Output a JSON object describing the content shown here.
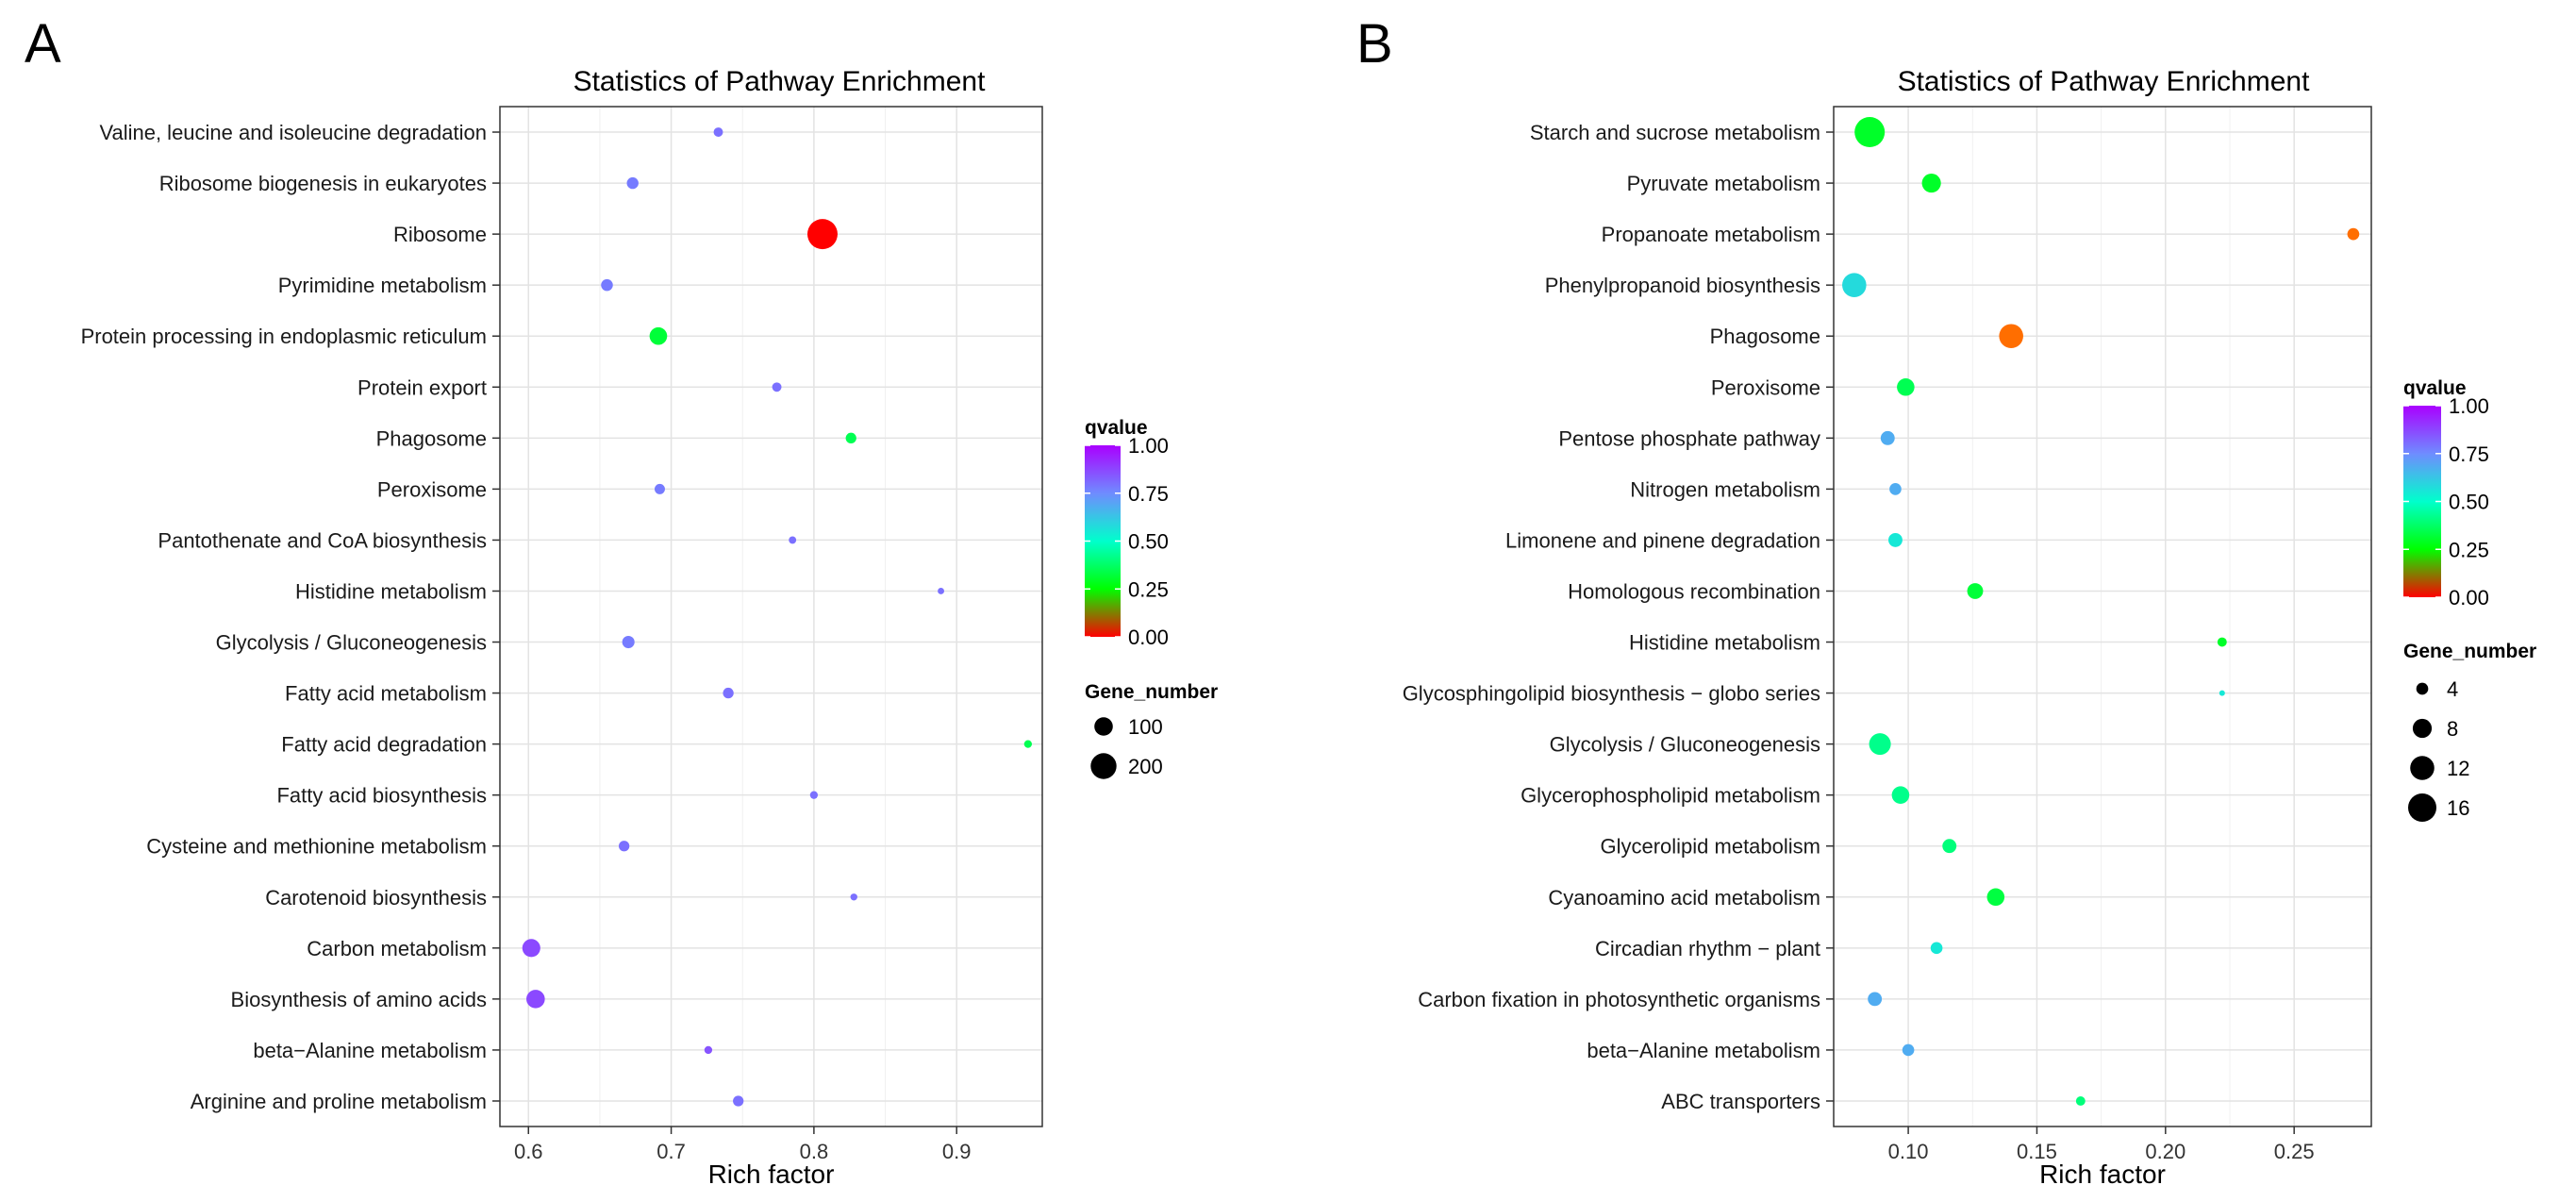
{
  "chart_data": [
    {
      "type": "scatter",
      "panel": "A",
      "title": "Statistics of Pathway Enrichment",
      "xlabel": "Rich factor",
      "ylabel": "",
      "xlim": [
        0.58,
        0.96
      ],
      "xticks": [
        0.6,
        0.7,
        0.8,
        0.9
      ],
      "xtick_labels": [
        "0.6",
        "0.7",
        "0.8",
        "0.9"
      ],
      "grid": true,
      "color_legend": {
        "title": "qvalue",
        "range": [
          0.0,
          1.0
        ],
        "ticks": [
          "1.00",
          "0.75",
          "0.50",
          "0.25",
          "0.00"
        ]
      },
      "size_legend": {
        "title": "Gene_number",
        "values": [
          100,
          200
        ],
        "labels": [
          "100",
          "200"
        ]
      },
      "size_range": [
        5,
        275
      ],
      "points": [
        {
          "pathway": "Valine, leucine and isoleucine degradation",
          "rich_factor": 0.733,
          "qvalue": 0.8,
          "gene_number": 22
        },
        {
          "pathway": "Ribosome biogenesis in eukaryotes",
          "rich_factor": 0.673,
          "qvalue": 0.78,
          "gene_number": 37
        },
        {
          "pathway": "Ribosome",
          "rich_factor": 0.806,
          "qvalue": 0.0,
          "gene_number": 275
        },
        {
          "pathway": "Pyrimidine metabolism",
          "rich_factor": 0.655,
          "qvalue": 0.78,
          "gene_number": 38
        },
        {
          "pathway": "Protein processing in endoplasmic reticulum",
          "rich_factor": 0.691,
          "qvalue": 0.32,
          "gene_number": 90
        },
        {
          "pathway": "Protein export",
          "rich_factor": 0.774,
          "qvalue": 0.8,
          "gene_number": 22
        },
        {
          "pathway": "Phagosome",
          "rich_factor": 0.826,
          "qvalue": 0.35,
          "gene_number": 30
        },
        {
          "pathway": "Peroxisome",
          "rich_factor": 0.692,
          "qvalue": 0.78,
          "gene_number": 28
        },
        {
          "pathway": "Pantothenate and CoA biosynthesis",
          "rich_factor": 0.785,
          "qvalue": 0.8,
          "gene_number": 12
        },
        {
          "pathway": "Histidine metabolism",
          "rich_factor": 0.889,
          "qvalue": 0.8,
          "gene_number": 8
        },
        {
          "pathway": "Glycolysis / Gluconeogenesis",
          "rich_factor": 0.67,
          "qvalue": 0.78,
          "gene_number": 42
        },
        {
          "pathway": "Fatty acid metabolism",
          "rich_factor": 0.74,
          "qvalue": 0.8,
          "gene_number": 30
        },
        {
          "pathway": "Fatty acid degradation",
          "rich_factor": 0.95,
          "qvalue": 0.35,
          "gene_number": 14
        },
        {
          "pathway": "Fatty acid biosynthesis",
          "rich_factor": 0.8,
          "qvalue": 0.8,
          "gene_number": 14
        },
        {
          "pathway": "Cysteine and methionine metabolism",
          "rich_factor": 0.667,
          "qvalue": 0.8,
          "gene_number": 30
        },
        {
          "pathway": "Carotenoid biosynthesis",
          "rich_factor": 0.828,
          "qvalue": 0.8,
          "gene_number": 10
        },
        {
          "pathway": "Carbon metabolism",
          "rich_factor": 0.602,
          "qvalue": 0.87,
          "gene_number": 95
        },
        {
          "pathway": "Biosynthesis of amino acids",
          "rich_factor": 0.605,
          "qvalue": 0.87,
          "gene_number": 100
        },
        {
          "pathway": "beta−Alanine metabolism",
          "rich_factor": 0.726,
          "qvalue": 0.85,
          "gene_number": 14
        },
        {
          "pathway": "Arginine and proline metabolism",
          "rich_factor": 0.747,
          "qvalue": 0.8,
          "gene_number": 30
        }
      ]
    },
    {
      "type": "scatter",
      "panel": "B",
      "title": "Statistics of Pathway Enrichment",
      "xlabel": "Rich factor",
      "ylabel": "",
      "xlim": [
        0.071,
        0.28
      ],
      "xticks": [
        0.1,
        0.15,
        0.2,
        0.25
      ],
      "xtick_labels": [
        "0.10",
        "0.15",
        "0.20",
        "0.25"
      ],
      "grid": true,
      "color_legend": {
        "title": "qvalue",
        "range": [
          0.0,
          1.0
        ],
        "ticks": [
          "1.00",
          "0.75",
          "0.50",
          "0.25",
          "0.00"
        ]
      },
      "size_legend": {
        "title": "Gene_number",
        "values": [
          4,
          8,
          12,
          16
        ],
        "labels": [
          "4",
          "8",
          "12",
          "16"
        ]
      },
      "size_range": [
        2,
        18
      ],
      "points": [
        {
          "pathway": "Starch and sucrose metabolism",
          "rich_factor": 0.085,
          "qvalue": 0.3,
          "gene_number": 18
        },
        {
          "pathway": "Pyruvate metabolism",
          "rich_factor": 0.109,
          "qvalue": 0.3,
          "gene_number": 8
        },
        {
          "pathway": "Propanoate metabolism",
          "rich_factor": 0.273,
          "qvalue": 0.12,
          "gene_number": 4
        },
        {
          "pathway": "Phenylpropanoid biosynthesis",
          "rich_factor": 0.079,
          "qvalue": 0.58,
          "gene_number": 12
        },
        {
          "pathway": "Phagosome",
          "rich_factor": 0.14,
          "qvalue": 0.12,
          "gene_number": 12
        },
        {
          "pathway": "Peroxisome",
          "rich_factor": 0.099,
          "qvalue": 0.35,
          "gene_number": 7
        },
        {
          "pathway": "Pentose phosphate pathway",
          "rich_factor": 0.092,
          "qvalue": 0.68,
          "gene_number": 5
        },
        {
          "pathway": "Nitrogen metabolism",
          "rich_factor": 0.095,
          "qvalue": 0.68,
          "gene_number": 4
        },
        {
          "pathway": "Limonene and pinene degradation",
          "rich_factor": 0.095,
          "qvalue": 0.55,
          "gene_number": 5
        },
        {
          "pathway": "Homologous recombination",
          "rich_factor": 0.126,
          "qvalue": 0.32,
          "gene_number": 6
        },
        {
          "pathway": "Histidine metabolism",
          "rich_factor": 0.222,
          "qvalue": 0.3,
          "gene_number": 3
        },
        {
          "pathway": "Glycosphingolipid biosynthesis − globo series",
          "rich_factor": 0.222,
          "qvalue": 0.55,
          "gene_number": 2
        },
        {
          "pathway": "Glycolysis / Gluconeogenesis",
          "rich_factor": 0.089,
          "qvalue": 0.42,
          "gene_number": 10
        },
        {
          "pathway": "Glycerophospholipid metabolism",
          "rich_factor": 0.097,
          "qvalue": 0.42,
          "gene_number": 7
        },
        {
          "pathway": "Glycerolipid metabolism",
          "rich_factor": 0.116,
          "qvalue": 0.4,
          "gene_number": 5
        },
        {
          "pathway": "Cyanoamino acid metabolism",
          "rich_factor": 0.134,
          "qvalue": 0.33,
          "gene_number": 7
        },
        {
          "pathway": "Circadian rhythm − plant",
          "rich_factor": 0.111,
          "qvalue": 0.55,
          "gene_number": 4
        },
        {
          "pathway": "Carbon fixation in photosynthetic organisms",
          "rich_factor": 0.087,
          "qvalue": 0.68,
          "gene_number": 5
        },
        {
          "pathway": "beta−Alanine metabolism",
          "rich_factor": 0.1,
          "qvalue": 0.68,
          "gene_number": 4
        },
        {
          "pathway": "ABC transporters",
          "rich_factor": 0.167,
          "qvalue": 0.4,
          "gene_number": 3
        }
      ]
    }
  ]
}
